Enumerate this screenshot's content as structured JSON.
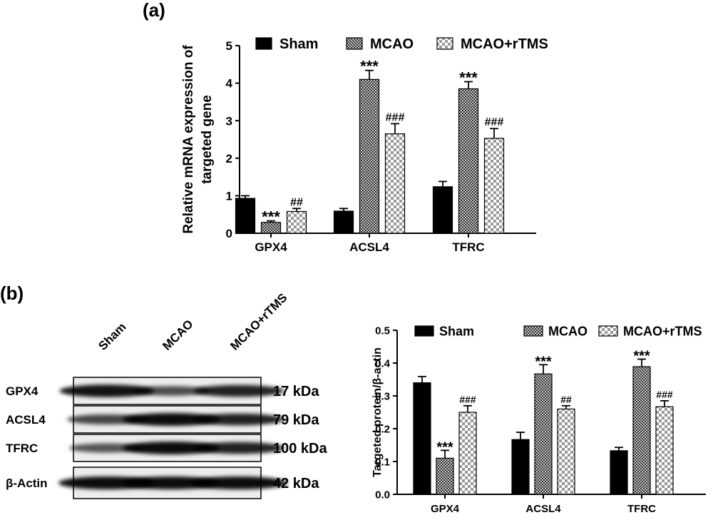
{
  "panel_a_label": "(a)",
  "panel_b_label": "(b)",
  "colors": {
    "sham": "#000000",
    "mcao": "#555555",
    "mcao_rtms": "#ffffff"
  },
  "chart_data": [
    {
      "type": "bar",
      "panel": "a",
      "ylabel_lines": [
        "Relative mRNA expression of",
        "targeted gene"
      ],
      "ylim": [
        0,
        5
      ],
      "yticks": [
        "0",
        "1",
        "2",
        "3",
        "4",
        "5"
      ],
      "categories": [
        "GPX4",
        "ACSL4",
        "TFRC"
      ],
      "legend_position": "top",
      "series": [
        {
          "name": "Sham",
          "pattern": "solid",
          "values": [
            0.93,
            0.59,
            1.24
          ],
          "errors": [
            0.07,
            0.07,
            0.14
          ],
          "sig": [
            "",
            "",
            ""
          ]
        },
        {
          "name": "MCAO",
          "pattern": "dense-checker",
          "values": [
            0.29,
            4.1,
            3.85
          ],
          "errors": [
            0.04,
            0.24,
            0.19
          ],
          "sig": [
            "***",
            "***",
            "***"
          ]
        },
        {
          "name": "MCAO+rTMS",
          "pattern": "checker",
          "values": [
            0.58,
            2.65,
            2.53
          ],
          "errors": [
            0.08,
            0.27,
            0.26
          ],
          "sig": [
            "##",
            "###",
            "###"
          ]
        }
      ]
    },
    {
      "type": "bar",
      "panel": "b",
      "ylabel_lines": [
        "Targeted protein/β-actin"
      ],
      "ylim": [
        0,
        0.5
      ],
      "yticks": [
        "0.0",
        "0.1",
        "0.2",
        "0.3",
        "0.4",
        "0.5"
      ],
      "categories": [
        "GPX4",
        "ACSL4",
        "TFRC"
      ],
      "legend_position": "top",
      "series": [
        {
          "name": "Sham",
          "pattern": "solid",
          "values": [
            0.34,
            0.167,
            0.133
          ],
          "errors": [
            0.019,
            0.022,
            0.01
          ],
          "sig": [
            "",
            "",
            ""
          ]
        },
        {
          "name": "MCAO",
          "pattern": "dense-checker",
          "values": [
            0.11,
            0.367,
            0.389
          ],
          "errors": [
            0.024,
            0.028,
            0.023
          ],
          "sig": [
            "***",
            "***",
            "***"
          ]
        },
        {
          "name": "MCAO+rTMS",
          "pattern": "checker",
          "values": [
            0.25,
            0.26,
            0.267
          ],
          "errors": [
            0.02,
            0.01,
            0.018
          ],
          "sig": [
            "###",
            "##",
            "###"
          ]
        }
      ]
    }
  ],
  "blot": {
    "lanes": [
      "Sham",
      "MCAO",
      "MCAO+rTMS"
    ],
    "rows": [
      {
        "protein": "GPX4",
        "size": "17 kDa",
        "intensity": [
          0.95,
          0.55,
          0.85
        ]
      },
      {
        "protein": "ACSL4",
        "size": "79 kDa",
        "intensity": [
          0.6,
          1.0,
          0.85
        ]
      },
      {
        "protein": "TFRC",
        "size": "100 kDa",
        "intensity": [
          0.5,
          1.0,
          0.85
        ]
      },
      {
        "protein": "β-Actin",
        "size": "42 kDa",
        "intensity": [
          1.0,
          1.0,
          1.0
        ]
      }
    ]
  }
}
